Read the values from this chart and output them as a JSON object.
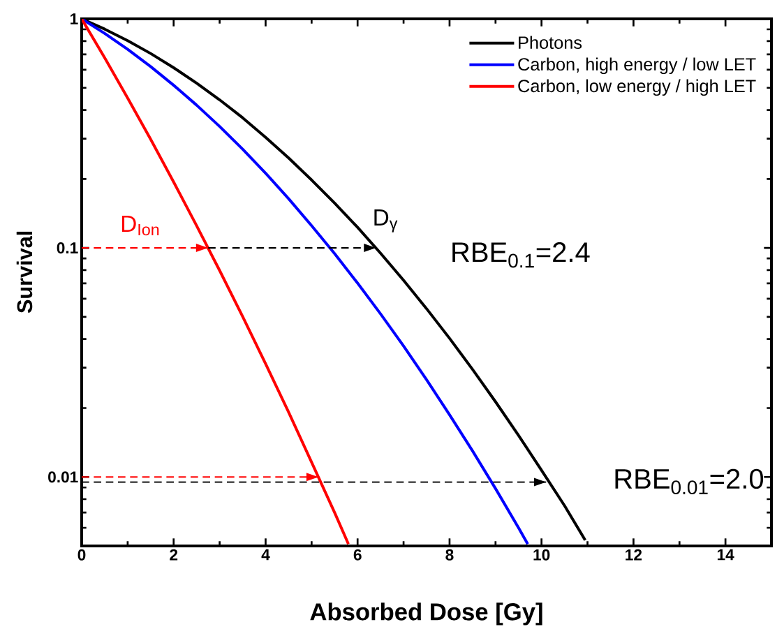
{
  "chart_data": {
    "type": "line",
    "xlabel": "Absorbed Dose [Gy]",
    "ylabel": "Survival",
    "log": "y",
    "xlim": [
      0,
      15
    ],
    "ylim": [
      0.005,
      1
    ],
    "xticks": [
      0,
      2,
      4,
      6,
      8,
      10,
      12,
      14
    ],
    "yticks": [
      0.01,
      0.1,
      1
    ],
    "legend": "top right",
    "marker": "none",
    "line_style": "solid",
    "series": [
      {
        "name": "Photons",
        "color": "#000000",
        "x": [
          0,
          0.5,
          1,
          1.5,
          2,
          2.5,
          3,
          3.5,
          4,
          4.5,
          5,
          5.5,
          6,
          6.5,
          7,
          7.5,
          8,
          8.5,
          9,
          9.5,
          10,
          10.5,
          10.95
        ],
        "values": [
          1,
          0.902,
          0.803,
          0.706,
          0.612,
          0.524,
          0.443,
          0.37,
          0.304,
          0.247,
          0.198,
          0.157,
          0.123,
          0.0948,
          0.0722,
          0.0543,
          0.0403,
          0.0295,
          0.0213,
          0.0152,
          0.0107,
          0.0075,
          0.0053
        ]
      },
      {
        "name": "Carbon, high energy / low LET",
        "color": "#0000ff",
        "x": [
          0,
          0.5,
          1,
          1.5,
          2,
          2.5,
          3,
          3.5,
          4,
          4.5,
          5,
          5.5,
          6,
          6.5,
          7,
          7.5,
          8,
          8.5,
          9,
          9.5,
          9.7
        ],
        "values": [
          1,
          0.864,
          0.736,
          0.619,
          0.513,
          0.42,
          0.339,
          0.27,
          0.212,
          0.164,
          0.125,
          0.0944,
          0.0702,
          0.0515,
          0.0373,
          0.0266,
          0.0187,
          0.013,
          0.0089,
          0.006,
          0.0051
        ]
      },
      {
        "name": "Carbon, low energy / high LET",
        "color": "#ff0000",
        "x": [
          0,
          0.5,
          1,
          1.5,
          2,
          2.5,
          3,
          3.5,
          4,
          4.5,
          5,
          5.5,
          5.8
        ],
        "values": [
          1,
          0.676,
          0.451,
          0.298,
          0.194,
          0.125,
          0.0797,
          0.0502,
          0.0312,
          0.0192,
          0.0116,
          0.007,
          0.0051
        ]
      },
      {
        "color": "#000000",
        "line_style": "dashed",
        "x": [
          2.75,
          6.4
        ],
        "values": [
          0.1,
          0.1
        ]
      },
      {
        "color": "#ff0000",
        "line_style": "dashed",
        "x": [
          0,
          2.75
        ],
        "values": [
          0.1,
          0.1
        ]
      },
      {
        "color": "#000000",
        "line_style": "dashed",
        "x": [
          0,
          10.1
        ],
        "values": [
          0.0095,
          0.0095
        ]
      },
      {
        "color": "#ff0000",
        "line_style": "dashed",
        "x": [
          0,
          5.15
        ],
        "values": [
          0.01,
          0.01
        ]
      }
    ],
    "annotations": [
      {
        "text": "D$_{Ion}$",
        "x": 2.75,
        "y": 0.1
      },
      {
        "text": "D$_{γ}$",
        "x": 6.4,
        "y": 0.1
      },
      "RBE$_{0.1}$=2.4",
      "RBE$_{0.01}$=2.0"
    ]
  }
}
